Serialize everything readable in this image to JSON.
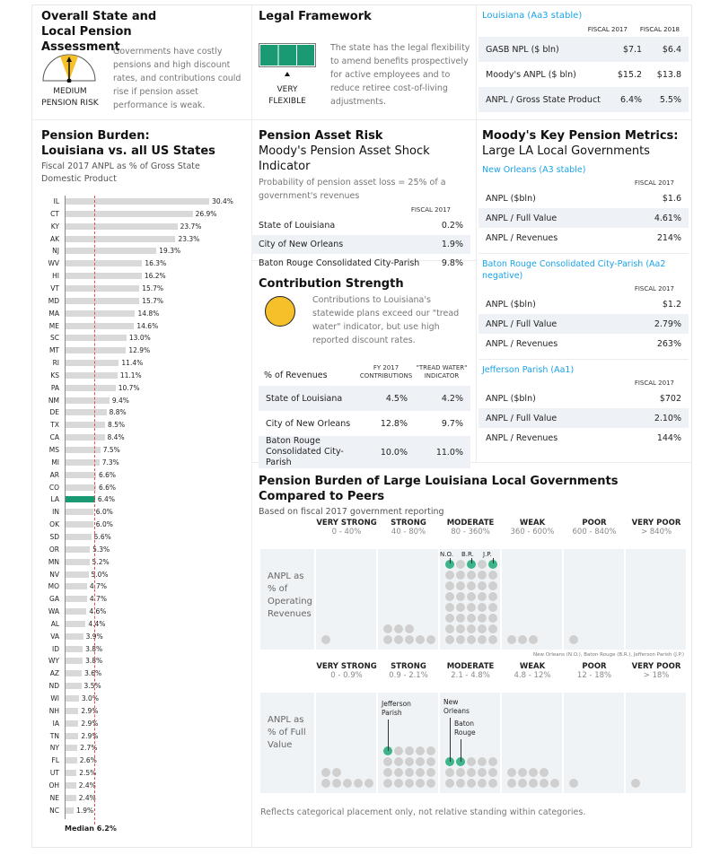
{
  "overall": {
    "title": "Overall State and Local Pension Assessment",
    "gauge_label": "MEDIUM PENSION RISK",
    "text": "Governments have costly pensions and high discount rates, and contributions could rise if pension asset performance is weak.",
    "gauge_color": "#f5c02a"
  },
  "legal": {
    "title": "Legal Framework",
    "label": "VERY FLEXIBLE",
    "text": "The state has the legal flexibility to amend benefits prospectively for active employees and to reduce retiree cost-of-living adjustments.",
    "color": "#1a9a73"
  },
  "louisiana": {
    "title": "Louisiana (Aa3 stable)",
    "cols": [
      "FISCAL 2017",
      "FISCAL 2018"
    ],
    "rows": [
      {
        "label": "GASB NPL ($ bln)",
        "v1": "$7.1",
        "v2": "$6.4"
      },
      {
        "label": "Moody's ANPL ($ bln)",
        "v1": "$15.2",
        "v2": "$13.8"
      },
      {
        "label": "ANPL / Gross State Product",
        "v1": "6.4%",
        "v2": "5.5%"
      }
    ]
  },
  "burden": {
    "title1": "Pension Burden:",
    "title2": "Louisiana vs. all US States",
    "subtitle": "Fiscal 2017 ANPL as % of Gross State Domestic Product",
    "median_label": "Median",
    "median_value": "6.2%"
  },
  "chart_data": {
    "type": "bar",
    "orientation": "horizontal",
    "median": 6.2,
    "highlight": "LA",
    "highlight_color": "#1a9a73",
    "bar_color": "#d9d9d9",
    "categories": [
      "IL",
      "CT",
      "KY",
      "AK",
      "NJ",
      "WV",
      "HI",
      "VT",
      "MD",
      "MA",
      "ME",
      "SC",
      "MT",
      "RI",
      "KS",
      "PA",
      "NM",
      "DE",
      "TX",
      "CA",
      "MS",
      "MI",
      "AR",
      "CO",
      "LA",
      "IN",
      "OK",
      "SD",
      "OR",
      "MN",
      "NV",
      "MO",
      "GA",
      "WA",
      "AL",
      "VA",
      "ID",
      "WY",
      "AZ",
      "ND",
      "WI",
      "NH",
      "IA",
      "TN",
      "NY",
      "FL",
      "UT",
      "OH",
      "NE",
      "NC"
    ],
    "values": [
      30.4,
      26.9,
      23.7,
      23.3,
      19.3,
      16.3,
      16.2,
      15.7,
      15.7,
      14.8,
      14.6,
      13.0,
      12.9,
      11.4,
      11.1,
      10.7,
      9.4,
      8.8,
      8.5,
      8.4,
      7.5,
      7.3,
      6.6,
      6.6,
      6.4,
      6.0,
      6.0,
      5.6,
      5.3,
      5.2,
      5.0,
      4.7,
      4.7,
      4.6,
      4.4,
      3.9,
      3.8,
      3.8,
      3.6,
      3.5,
      3.0,
      2.9,
      2.9,
      2.9,
      2.7,
      2.6,
      2.5,
      2.4,
      2.4,
      1.9
    ],
    "labels": [
      "30.4%",
      "26.9%",
      "23.7%",
      "23.3%",
      "19.3%",
      "16.3%",
      "16.2%",
      "15.7%",
      "15.7%",
      "14.8%",
      "14.6%",
      "13.0%",
      "12.9%",
      "11.4%",
      "11.1%",
      "10.7%",
      "9.4%",
      "8.8%",
      "8.5%",
      "8.4%",
      "7.5%",
      "7.3%",
      "6.6%",
      "6.6%",
      "6.4%",
      "6.0%",
      "6.0%",
      "5.6%",
      "5.3%",
      "5.2%",
      "5.0%",
      "4.7%",
      "4.7%",
      "4.6%",
      "4.4%",
      "3.9%",
      "3.8%",
      "3.8%",
      "3.6%",
      "3.5%",
      "3.0%",
      "2.9%",
      "2.9%",
      "2.9%",
      "2.7%",
      "2.6%",
      "2.5%",
      "2.4%",
      "2.4%",
      "1.9%"
    ]
  },
  "asset_risk": {
    "title": "Pension Asset Risk",
    "subtitle": "Moody's Pension Asset Shock Indicator",
    "desc": "Probability of pension asset loss = 25% of a government's revenues",
    "col": "FISCAL 2017",
    "rows": [
      {
        "label": "State of Louisiana",
        "v": "0.2%"
      },
      {
        "label": "City of New Orleans",
        "v": "1.9%"
      },
      {
        "label": "Baton Rouge Consolidated City-Parish",
        "v": "9.8%"
      }
    ]
  },
  "contrib": {
    "title": "Contribution Strength",
    "text": "Contributions to Louisiana's statewide plans exceed our \"tread water\" indicator, but use high reported discount rates.",
    "head": "% of Revenues",
    "col1": "FY 2017 CONTRIBUTIONS",
    "col2": "\"TREAD WATER\" INDICATOR",
    "rows": [
      {
        "label": "State of Louisiana",
        "v1": "4.5%",
        "v2": "4.2%"
      },
      {
        "label": "City of New Orleans",
        "v1": "12.8%",
        "v2": "9.7%"
      },
      {
        "label": "Baton Rouge Consolidated City-Parish",
        "v1": "10.0%",
        "v2": "11.0%"
      }
    ]
  },
  "metrics": {
    "title1": "Moody's Key Pension Metrics:",
    "title2": "Large LA Local Governments",
    "col": "FISCAL 2017",
    "govs": [
      {
        "name": "New Orleans (A3 stable)",
        "rows": [
          {
            "label": "ANPL ($bln)",
            "v": "$1.6"
          },
          {
            "label": "ANPL / Full Value",
            "v": "4.61%"
          },
          {
            "label": "ANPL / Revenues",
            "v": "214%"
          }
        ]
      },
      {
        "name": "Baton Rouge Consolidated City-Parish (Aa2 negative)",
        "rows": [
          {
            "label": "ANPL ($bln)",
            "v": "$1.2"
          },
          {
            "label": "ANPL / Full Value",
            "v": "2.79%"
          },
          {
            "label": "ANPL / Revenues",
            "v": "263%"
          }
        ]
      },
      {
        "name": "Jefferson Parish (Aa1)",
        "rows": [
          {
            "label": "ANPL ($bln)",
            "v": "$702"
          },
          {
            "label": "ANPL / Full Value",
            "v": "2.10%"
          },
          {
            "label": "ANPL / Revenues",
            "v": "144%"
          }
        ]
      }
    ]
  },
  "peers": {
    "title": "Pension Burden of Large Louisiana Local Governments Compared to Peers",
    "subtitle": "Based on fiscal 2017 government reporting",
    "legend": "New Orleans (N.O.), Baton Rouge (B.R.), Jefferson Parish (J.P.)",
    "footnote": "Reflects categorical placement only, not relative standing within categories.",
    "panels": [
      {
        "label": "ANPL as % of Operating Revenues",
        "cats": [
          {
            "name": "VERY STRONG",
            "range": "0 - 40%",
            "count": 1,
            "hl": []
          },
          {
            "name": "STRONG",
            "range": "40 - 80%",
            "count": 8,
            "hl": []
          },
          {
            "name": "MODERATE",
            "range": "80 - 360%",
            "count": 40,
            "hl": [
              35,
              37,
              39
            ],
            "tags": [
              "N.O.",
              "B.R.",
              "J.P."
            ]
          },
          {
            "name": "WEAK",
            "range": "360 - 600%",
            "count": 3,
            "hl": []
          },
          {
            "name": "POOR",
            "range": "600 - 840%",
            "count": 1,
            "hl": []
          },
          {
            "name": "VERY POOR",
            "range": "> 840%",
            "count": 0,
            "hl": []
          }
        ]
      },
      {
        "label": "ANPL as % of Full Value",
        "cats": [
          {
            "name": "VERY STRONG",
            "range": "0 - 0.9%",
            "count": 7,
            "hl": []
          },
          {
            "name": "STRONG",
            "range": "0.9 - 2.1%",
            "count": 20,
            "hl": [
              15
            ],
            "tags": [
              "Jefferson Parish"
            ]
          },
          {
            "name": "MODERATE",
            "range": "2.1 - 4.8%",
            "count": 15,
            "hl": [
              10,
              11
            ],
            "tags": [
              "New Orleans",
              "Baton Rouge"
            ]
          },
          {
            "name": "WEAK",
            "range": "4.8 - 12%",
            "count": 9,
            "hl": []
          },
          {
            "name": "POOR",
            "range": "12 - 18%",
            "count": 1,
            "hl": []
          },
          {
            "name": "VERY POOR",
            "range": "> 18%",
            "count": 1,
            "hl": []
          }
        ]
      }
    ]
  }
}
